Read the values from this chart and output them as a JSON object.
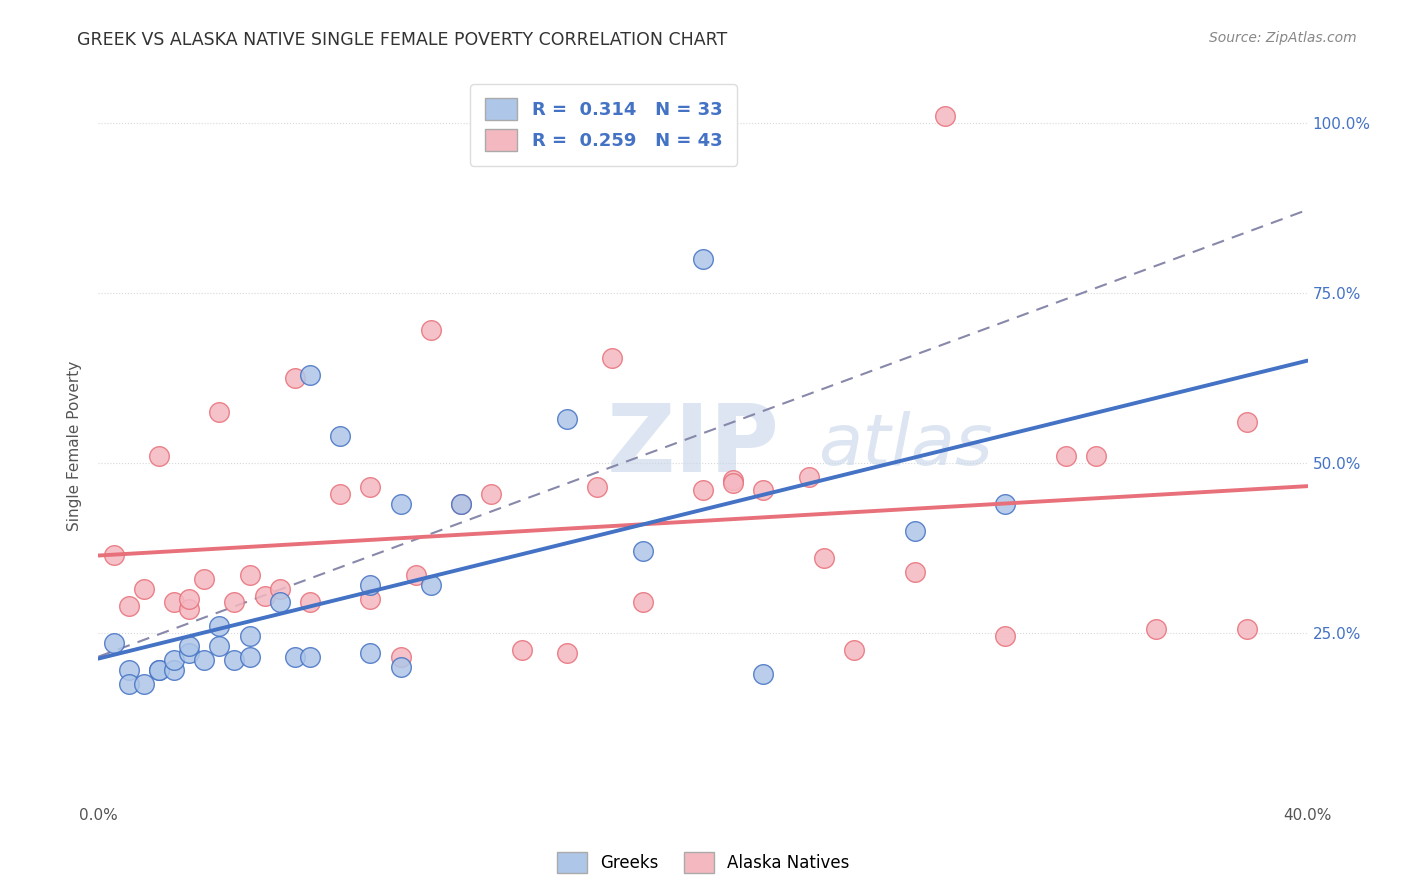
{
  "title": "GREEK VS ALASKA NATIVE SINGLE FEMALE POVERTY CORRELATION CHART",
  "source": "Source: ZipAtlas.com",
  "ylabel": "Single Female Poverty",
  "xlim": [
    0.0,
    0.4
  ],
  "ylim": [
    0.0,
    1.05
  ],
  "greek_R": 0.314,
  "greek_N": 33,
  "alaska_R": 0.259,
  "alaska_N": 43,
  "greek_color": "#aec6e8",
  "alaska_color": "#f4b8c1",
  "greek_line_color": "#4472c4",
  "alaska_line_color": "#e8707a",
  "watermark_ZIP": "ZIP",
  "watermark_atlas": "atlas",
  "greek_scatter_x": [
    0.005,
    0.01,
    0.01,
    0.015,
    0.02,
    0.02,
    0.025,
    0.025,
    0.03,
    0.03,
    0.035,
    0.04,
    0.04,
    0.045,
    0.05,
    0.05,
    0.06,
    0.065,
    0.07,
    0.07,
    0.08,
    0.09,
    0.09,
    0.1,
    0.1,
    0.11,
    0.12,
    0.155,
    0.18,
    0.2,
    0.22,
    0.27,
    0.3
  ],
  "greek_scatter_y": [
    0.235,
    0.195,
    0.175,
    0.175,
    0.195,
    0.195,
    0.195,
    0.21,
    0.22,
    0.23,
    0.21,
    0.23,
    0.26,
    0.21,
    0.215,
    0.245,
    0.295,
    0.215,
    0.63,
    0.215,
    0.54,
    0.22,
    0.32,
    0.2,
    0.44,
    0.32,
    0.44,
    0.565,
    0.37,
    0.8,
    0.19,
    0.4,
    0.44
  ],
  "alaska_scatter_x": [
    0.005,
    0.01,
    0.015,
    0.02,
    0.025,
    0.03,
    0.03,
    0.035,
    0.04,
    0.045,
    0.05,
    0.055,
    0.06,
    0.065,
    0.07,
    0.08,
    0.09,
    0.09,
    0.1,
    0.105,
    0.11,
    0.12,
    0.13,
    0.14,
    0.155,
    0.165,
    0.17,
    0.18,
    0.2,
    0.21,
    0.21,
    0.22,
    0.235,
    0.24,
    0.25,
    0.27,
    0.28,
    0.3,
    0.32,
    0.33,
    0.35,
    0.38,
    0.38
  ],
  "alaska_scatter_y": [
    0.365,
    0.29,
    0.315,
    0.51,
    0.295,
    0.285,
    0.3,
    0.33,
    0.575,
    0.295,
    0.335,
    0.305,
    0.315,
    0.625,
    0.295,
    0.455,
    0.465,
    0.3,
    0.215,
    0.335,
    0.695,
    0.44,
    0.455,
    0.225,
    0.22,
    0.465,
    0.655,
    0.295,
    0.46,
    0.475,
    0.47,
    0.46,
    0.48,
    0.36,
    0.225,
    0.34,
    1.01,
    0.245,
    0.51,
    0.51,
    0.255,
    0.56,
    0.255
  ],
  "background_color": "#ffffff",
  "grid_color": "#d8d8d8"
}
